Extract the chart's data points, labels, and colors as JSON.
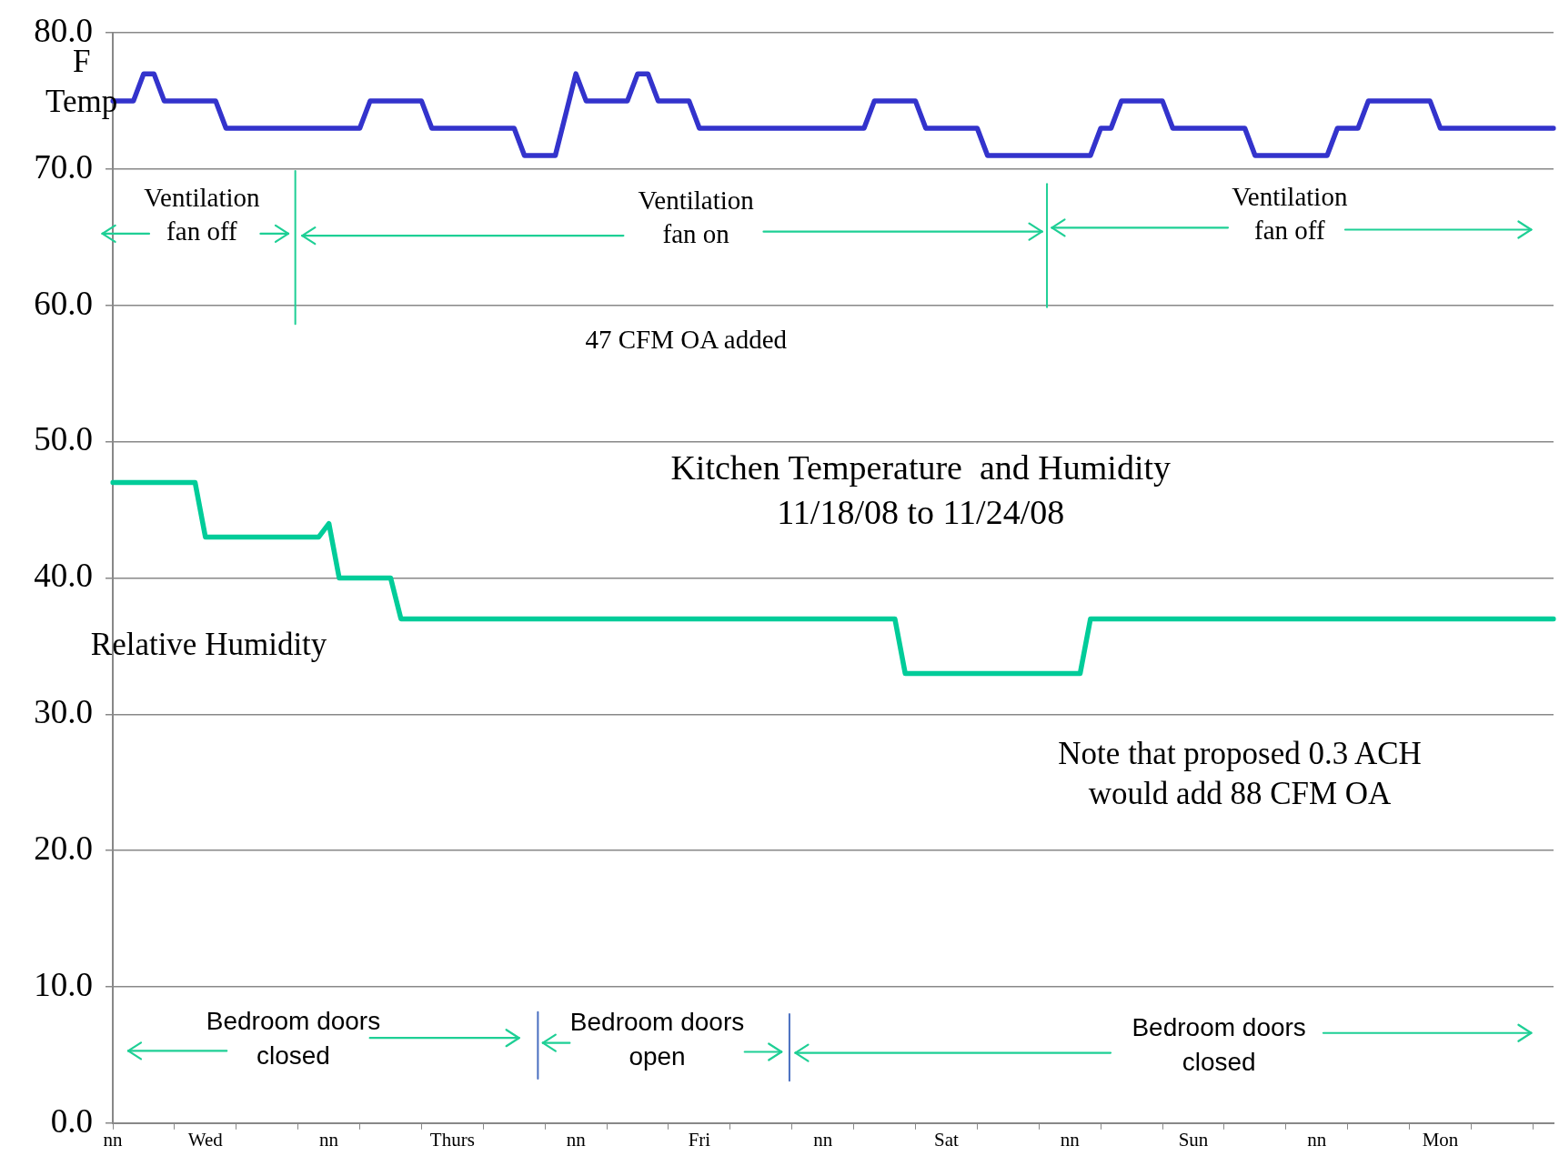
{
  "chart_data": {
    "type": "line",
    "title": "Kitchen Temperature  and Humidity",
    "subtitle": "11/18/08 to 11/24/08",
    "categories": [
      "nn",
      null,
      null,
      null,
      null,
      null,
      null,
      null,
      null,
      "Wed",
      null,
      null,
      null,
      null,
      null,
      null,
      null,
      null,
      null,
      null,
      null,
      "nn",
      null,
      null,
      null,
      null,
      null,
      null,
      null,
      null,
      null,
      null,
      null,
      "Thurs",
      null,
      null,
      null,
      null,
      null,
      null,
      null,
      null,
      null,
      null,
      null,
      "nn",
      null,
      null,
      null,
      null,
      null,
      null,
      null,
      null,
      null,
      null,
      null,
      "Fri",
      null,
      null,
      null,
      null,
      null,
      null,
      null,
      null,
      null,
      null,
      null,
      "nn",
      null,
      null,
      null,
      null,
      null,
      null,
      null,
      null,
      null,
      null,
      null,
      "Sat",
      null,
      null,
      null,
      null,
      null,
      null,
      null,
      null,
      null,
      null,
      null,
      "nn",
      null,
      null,
      null,
      null,
      null,
      null,
      null,
      null,
      null,
      null,
      null,
      "Sun",
      null,
      null,
      null,
      null,
      null,
      null,
      null,
      null,
      null,
      null,
      null,
      "nn",
      null,
      null,
      null,
      null,
      null,
      null,
      null,
      null,
      null,
      null,
      null,
      "Mon",
      null,
      null,
      null,
      null,
      null,
      null,
      null,
      null,
      null,
      null,
      null
    ],
    "ylim": [
      0,
      80
    ],
    "yticks": [
      {
        "value": 0,
        "label": "0.0"
      },
      {
        "value": 10,
        "label": "10.0"
      },
      {
        "value": 20,
        "label": "20.0"
      },
      {
        "value": 30,
        "label": "30.0"
      },
      {
        "value": 40,
        "label": "40.0"
      },
      {
        "value": 50,
        "label": "50.0"
      },
      {
        "value": 60,
        "label": "60.0"
      },
      {
        "value": 70,
        "label": "70.0"
      },
      {
        "value": 80,
        "label": "80.0"
      }
    ],
    "grid": "y",
    "legend": false,
    "marker": "none",
    "line_style": "solid",
    "series": [
      {
        "name": "F Temp",
        "color": "#3333cc",
        "values": [
          75,
          75,
          75,
          77,
          77,
          75,
          75,
          75,
          75,
          75,
          75,
          73,
          73,
          73,
          73,
          73,
          73,
          73,
          73,
          73,
          73,
          73,
          73,
          73,
          73,
          75,
          75,
          75,
          75,
          75,
          75,
          73,
          73,
          73,
          73,
          73,
          73,
          73,
          73,
          73,
          71,
          71,
          71,
          71,
          74,
          77,
          75,
          75,
          75,
          75,
          75,
          77,
          77,
          75,
          75,
          75,
          75,
          73,
          73,
          73,
          73,
          73,
          73,
          73,
          73,
          73,
          73,
          73,
          73,
          73,
          73,
          73,
          73,
          73,
          75,
          75,
          75,
          75,
          75,
          73,
          73,
          73,
          73,
          73,
          73,
          71,
          71,
          71,
          71,
          71,
          71,
          71,
          71,
          71,
          71,
          71,
          73,
          73,
          75,
          75,
          75,
          75,
          75,
          73,
          73,
          73,
          73,
          73,
          73,
          73,
          73,
          71,
          71,
          71,
          71,
          71,
          71,
          71,
          71,
          73,
          73,
          73,
          75,
          75,
          75,
          75,
          75,
          75,
          75,
          73,
          73,
          73,
          73,
          73,
          73,
          73,
          73,
          73,
          73,
          73,
          73
        ]
      },
      {
        "name": "Relative Humidity",
        "color": "#00cc99",
        "values": [
          47,
          47,
          47,
          47,
          47,
          47,
          47,
          47,
          47,
          43,
          43,
          43,
          43,
          43,
          43,
          43,
          43,
          43,
          43,
          43,
          43,
          44,
          40,
          40,
          40,
          40,
          40,
          40,
          37,
          37,
          37,
          37,
          37,
          37,
          37,
          37,
          37,
          37,
          37,
          37,
          37,
          37,
          37,
          37,
          37,
          37,
          37,
          37,
          37,
          37,
          37,
          37,
          37,
          37,
          37,
          37,
          37,
          37,
          37,
          37,
          37,
          37,
          37,
          37,
          37,
          37,
          37,
          37,
          37,
          37,
          37,
          37,
          37,
          37,
          37,
          37,
          37,
          33,
          33,
          33,
          33,
          33,
          33,
          33,
          33,
          33,
          33,
          33,
          33,
          33,
          33,
          33,
          33,
          33,
          33,
          37,
          37,
          37,
          37,
          37,
          37,
          37,
          37,
          37,
          37,
          37,
          37,
          37,
          37,
          37,
          37,
          37,
          37,
          37,
          37,
          37,
          37,
          37,
          37,
          37,
          37,
          37,
          37,
          37,
          37,
          37,
          37,
          37,
          37,
          37,
          37,
          37,
          37,
          37,
          37,
          37,
          37,
          37,
          37,
          37,
          37
        ]
      }
    ],
    "annotations": [
      "Ventilation\nfan off",
      "Ventilation\nfan on",
      "Ventilation\nfan off",
      "47 CFM OA added",
      "Note that proposed 0.3 ACH\nwould add 88 CFM OA",
      "Bedroom doors\nclosed",
      "Bedroom doors\nopen",
      "Bedroom doors\nclosed"
    ]
  }
}
